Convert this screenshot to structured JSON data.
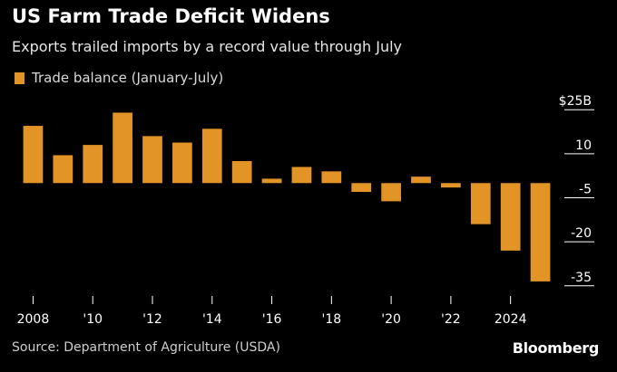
{
  "title": "US Farm Trade Deficit Widens",
  "subtitle": "Exports trailed imports by a record value through July",
  "legend": {
    "label": "Trade balance (January-July)",
    "color": "#e39427"
  },
  "source": "Source: Department of Agriculture (USDA)",
  "logo": "Bloomberg",
  "chart_data": {
    "type": "bar",
    "title": "US Farm Trade Deficit Widens",
    "subtitle": "Exports trailed imports by a record value through July",
    "xlabel": "",
    "ylabel": "",
    "unit": "$B",
    "ylim": [
      -40,
      30
    ],
    "yticks": [
      25,
      10,
      -5,
      -20,
      -35
    ],
    "ytick_labels": [
      "$25B",
      "10",
      "-5",
      "-20",
      "-35"
    ],
    "xtick_labels": [
      "2008",
      "'10",
      "'12",
      "'14",
      "'16",
      "'18",
      "'20",
      "'22",
      "2024"
    ],
    "categories": [
      "2008",
      "2009",
      "2010",
      "2011",
      "2012",
      "2013",
      "2014",
      "2015",
      "2016",
      "2017",
      "2018",
      "2019",
      "2020",
      "2021",
      "2022",
      "2023",
      "2024",
      "2025"
    ],
    "series": [
      {
        "name": "Trade balance (January-July)",
        "color": "#e39427",
        "values": [
          19.5,
          9.5,
          13.0,
          24.0,
          16.0,
          13.8,
          18.5,
          7.5,
          1.5,
          5.5,
          4.0,
          -3.0,
          -6.2,
          2.2,
          -1.5,
          -14.0,
          -23.0,
          -33.5
        ]
      }
    ]
  }
}
